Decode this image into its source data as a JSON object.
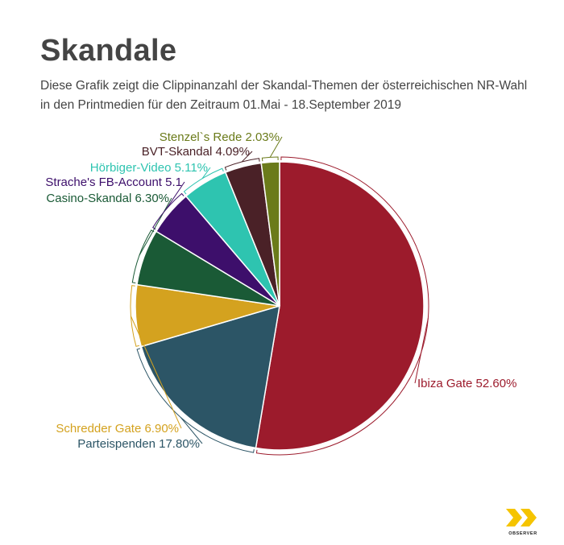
{
  "header": {
    "title": "Skandale",
    "subtitle_line1": "Diese Grafik zeigt die Clippinanzahl der Skandal-Themen der österreichischen NR-Wahl",
    "subtitle_line2": "in den Printmedien für den Zeitraum 01.Mai - 18.September 2019"
  },
  "chart_data": {
    "type": "pie",
    "title": "Skandale",
    "slices": [
      {
        "label": "Ibiza Gate 52.60%",
        "value": 52.6,
        "color": "#9c1b2c"
      },
      {
        "label": "Parteispenden 17.80%",
        "value": 17.8,
        "color": "#2c5566"
      },
      {
        "label": "Schredder Gate 6.90%",
        "value": 6.9,
        "color": "#d4a21f"
      },
      {
        "label": "Casino-Skandal 6.30%",
        "value": 6.3,
        "color": "#1a5a36"
      },
      {
        "label": "Strache's FB-Account 5.1",
        "value": 5.1,
        "color": "#3d0f6b"
      },
      {
        "label": "Hörbiger-Video 5.11%",
        "value": 5.11,
        "color": "#2ec4b0"
      },
      {
        "label": "BVT-Skandal 4.09%",
        "value": 4.09,
        "color": "#4a2127"
      },
      {
        "label": "Stenzel`s Rede 2.03%",
        "value": 2.03,
        "color": "#6b7b1a"
      }
    ]
  },
  "brand": {
    "logo_icon": "double-chevron-icon",
    "logo_text": "OBSERVER",
    "logo_color": "#f5c400"
  }
}
